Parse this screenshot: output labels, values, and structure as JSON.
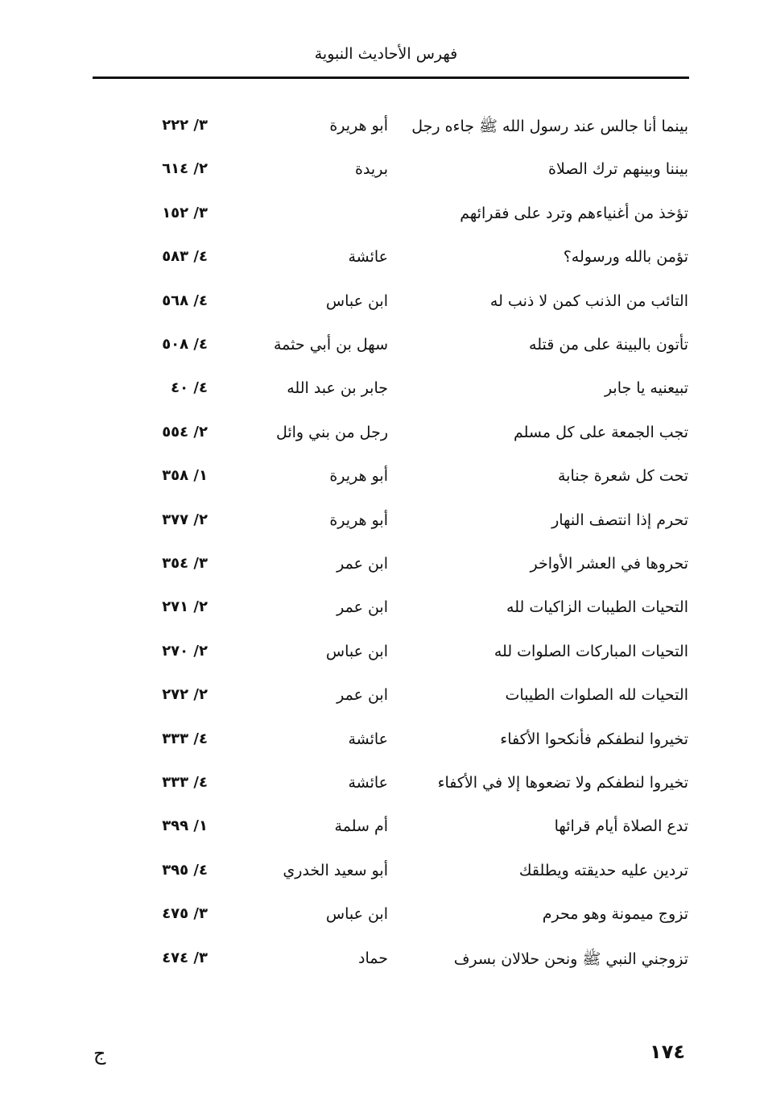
{
  "header": {
    "title": "فهرس الأحاديث النبوية"
  },
  "entries": [
    {
      "hadith": "بينما أنا جالس عند رسول الله ﷺ جاءه رجل",
      "narrator": "أبو هريرة",
      "ref": "٣/ ٢٢٢"
    },
    {
      "hadith": "بيننا وبينهم ترك الصلاة",
      "narrator": "بريدة",
      "ref": "٢/ ٦١٤"
    },
    {
      "hadith": "تؤخذ من أغنياءهم وترد على فقرائهم",
      "narrator": "",
      "ref": "٣/ ١٥٢"
    },
    {
      "hadith": "تؤمن بالله ورسوله؟",
      "narrator": "عائشة",
      "ref": "٤/ ٥٨٣"
    },
    {
      "hadith": "التائب من الذنب كمن لا ذنب له",
      "narrator": "ابن عباس",
      "ref": "٤/ ٥٦٨"
    },
    {
      "hadith": "تأتون بالبينة على من قتله",
      "narrator": "سهل بن أبي حثمة",
      "ref": "٤/ ٥٠٨"
    },
    {
      "hadith": "تبيعنيه يا جابر",
      "narrator": "جابر بن عبد الله",
      "ref": "٤/ ٤٠"
    },
    {
      "hadith": "تجب الجمعة على كل مسلم",
      "narrator": "رجل من بني وائل",
      "ref": "٢/ ٥٥٤"
    },
    {
      "hadith": "تحت كل شعرة جنابة",
      "narrator": "أبو هريرة",
      "ref": "١/ ٣٥٨"
    },
    {
      "hadith": "تحرم إذا انتصف النهار",
      "narrator": "أبو هريرة",
      "ref": "٢/ ٣٧٧"
    },
    {
      "hadith": "تحروها في العشر الأواخر",
      "narrator": "ابن عمر",
      "ref": "٣/ ٣٥٤"
    },
    {
      "hadith": "التحيات الطيبات الزاكيات لله",
      "narrator": "ابن عمر",
      "ref": "٢/ ٢٧١"
    },
    {
      "hadith": "التحيات المباركات الصلوات لله",
      "narrator": "ابن عباس",
      "ref": "٢/ ٢٧٠"
    },
    {
      "hadith": "التحيات لله الصلوات الطيبات",
      "narrator": "ابن عمر",
      "ref": "٢/ ٢٧٢"
    },
    {
      "hadith": "تخيروا لنطفكم فأنكحوا الأكفاء",
      "narrator": "عائشة",
      "ref": "٤/ ٣٣٣"
    },
    {
      "hadith": "تخيروا لنطفكم ولا تضعوها إلا في الأكفاء",
      "narrator": "عائشة",
      "ref": "٤/ ٣٣٣"
    },
    {
      "hadith": "تدع الصلاة أيام قرائها",
      "narrator": "أم سلمة",
      "ref": "١/ ٣٩٩"
    },
    {
      "hadith": "تردين عليه حديقته ويطلقك",
      "narrator": "أبو سعيد الخدري",
      "ref": "٤/ ٣٩٥"
    },
    {
      "hadith": "تزوج ميمونة وهو محرم",
      "narrator": "ابن عباس",
      "ref": "٣/ ٤٧٥"
    },
    {
      "hadith": "تزوجني النبي ﷺ ونحن حلالان بسرف",
      "narrator": "حماد",
      "ref": "٣/ ٤٧٤"
    }
  ],
  "footer": {
    "page_number": "١٧٤",
    "signature": "ج"
  }
}
